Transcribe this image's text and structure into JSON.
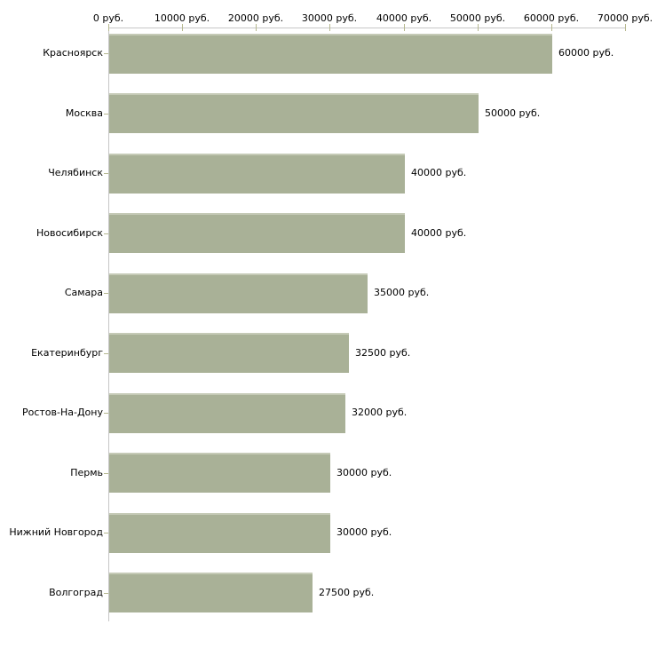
{
  "chart_data": {
    "type": "bar",
    "orientation": "horizontal",
    "title": "",
    "legend": "none",
    "grid": false,
    "categories": [
      "Красноярск",
      "Москва",
      "Челябинск",
      "Новосибирск",
      "Самара",
      "Екатеринбург",
      "Ростов-На-Дону",
      "Пермь",
      "Нижний Новгород",
      "Волгоград"
    ],
    "values": [
      60000,
      50000,
      40000,
      40000,
      35000,
      32500,
      32000,
      30000,
      30000,
      27500
    ],
    "value_labels": [
      "60000 руб.",
      "50000 руб.",
      "40000 руб.",
      "40000 руб.",
      "35000 руб.",
      "32500 руб.",
      "32000 руб.",
      "30000 руб.",
      "30000 руб.",
      "27500 руб."
    ],
    "x_axis": {
      "position": "top",
      "min": 0,
      "max": 70000,
      "tick_interval": 10000,
      "tick_labels": [
        "0 руб.",
        "10000 руб.",
        "20000 руб.",
        "30000 руб.",
        "40000 руб.",
        "50000 руб.",
        "60000 руб.",
        "70000 руб."
      ]
    },
    "colors": {
      "bar": "#a9b197",
      "bar_top_highlight": "#c5cab6",
      "axis_line": "#c6c6c6",
      "tick_mark": "#b6b88f",
      "text": "#000000",
      "background": "#ffffff"
    }
  }
}
